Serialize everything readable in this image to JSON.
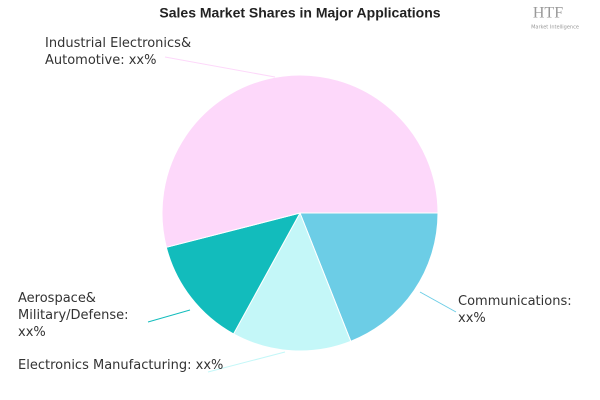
{
  "chart_data": {
    "type": "pie",
    "title": "Sales Market Shares in Major Applications",
    "categories": [
      "Communications:",
      "Electronics Manufacturing:",
      "Aerospace& Military/Defense:",
      "Industrial Electronics& Automotive:"
    ],
    "values": [
      19,
      14,
      13,
      54
    ],
    "value_labels": [
      "xx%",
      "xx%",
      "xx%",
      "xx%"
    ],
    "colors": [
      "#6ccde6",
      "#c4f7f8",
      "#12bcbc",
      "#fdd8fa"
    ]
  },
  "logo": {
    "text": "HTF",
    "tagline": "Market Intelligence"
  }
}
